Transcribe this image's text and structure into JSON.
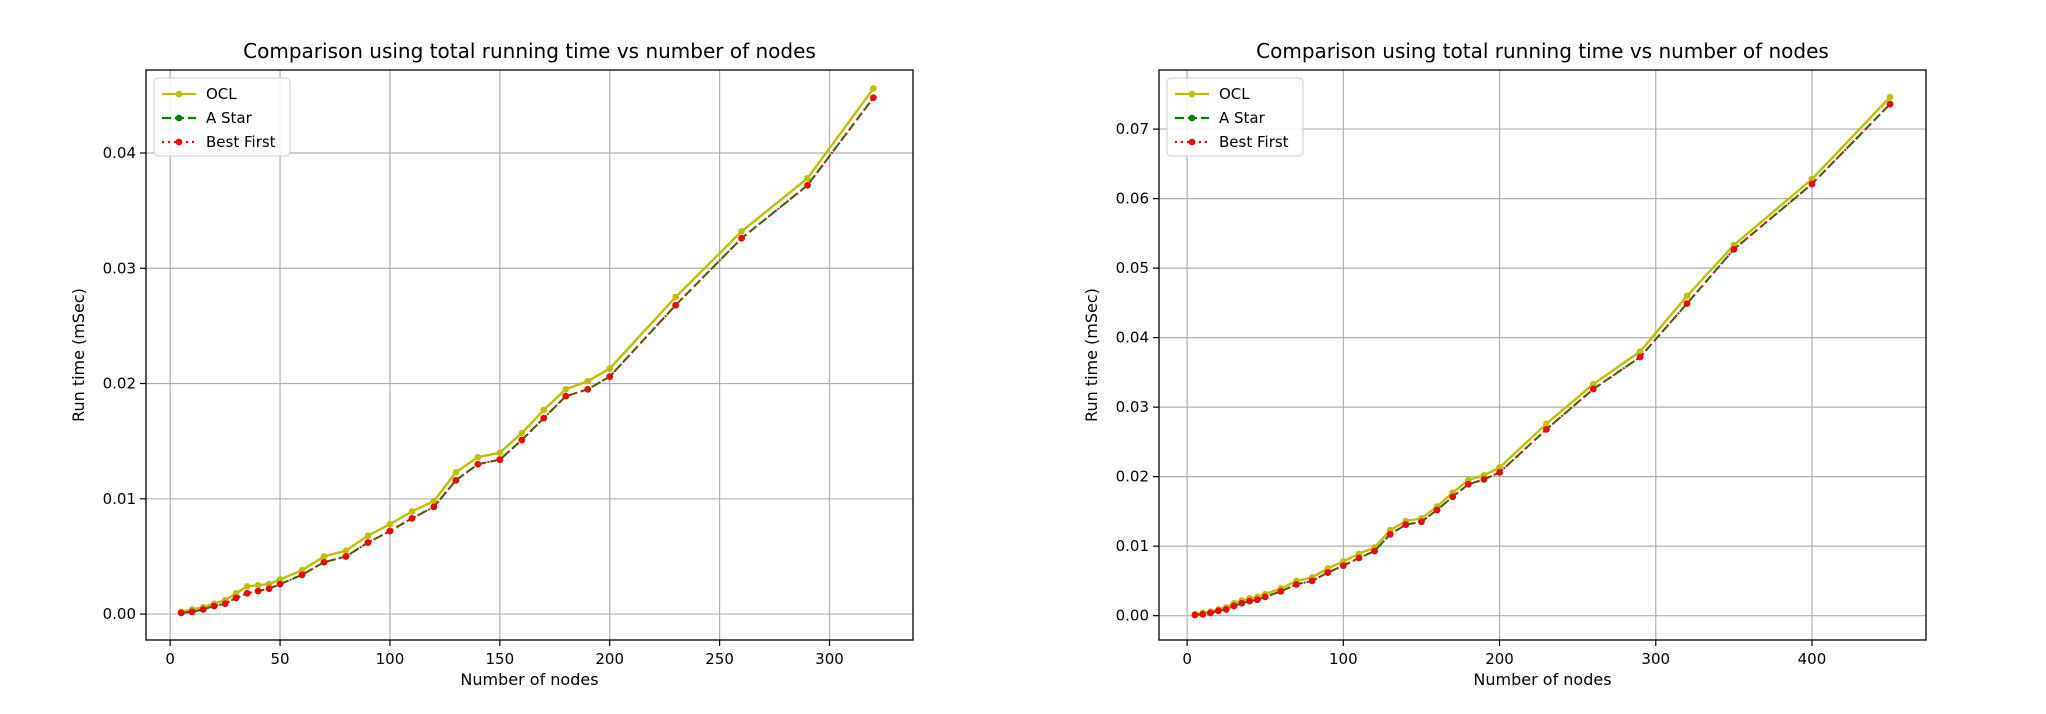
{
  "chart_data": [
    {
      "type": "line",
      "title": "Comparison using total running time vs number of nodes",
      "xlabel": "Number of nodes",
      "ylabel": "Run time (mSec)",
      "xlim": [
        -11,
        338
      ],
      "ylim": [
        -0.00225,
        0.0472
      ],
      "xticks": [
        0,
        50,
        100,
        150,
        200,
        250,
        300
      ],
      "xtick_labels": [
        "0",
        "50",
        "100",
        "150",
        "200",
        "250",
        "300"
      ],
      "yticks": [
        0.0,
        0.01,
        0.02,
        0.03,
        0.04
      ],
      "ytick_labels": [
        "0.00",
        "0.01",
        "0.02",
        "0.03",
        "0.04"
      ],
      "grid": true,
      "legend_position": "top-left",
      "x": [
        5,
        10,
        15,
        20,
        25,
        30,
        35,
        40,
        45,
        50,
        60,
        70,
        80,
        90,
        100,
        110,
        120,
        130,
        140,
        150,
        160,
        170,
        180,
        190,
        200,
        230,
        260,
        290,
        320
      ],
      "series": [
        {
          "name": "OCL",
          "color": "#bfbf00",
          "style": "solid",
          "values": [
            0.0002,
            0.0004,
            0.0006,
            0.0009,
            0.0012,
            0.0018,
            0.0024,
            0.0025,
            0.0026,
            0.003,
            0.0038,
            0.005,
            0.0055,
            0.0068,
            0.0078,
            0.0089,
            0.0098,
            0.0123,
            0.0136,
            0.014,
            0.0157,
            0.0177,
            0.0195,
            0.0202,
            0.0213,
            0.0275,
            0.0332,
            0.0378,
            0.0456
          ]
        },
        {
          "name": "A Star",
          "color": "#008000",
          "style": "dashed",
          "values": [
            0.0001,
            0.0002,
            0.0004,
            0.0007,
            0.0009,
            0.0014,
            0.0018,
            0.002,
            0.0022,
            0.0026,
            0.0034,
            0.0045,
            0.005,
            0.0062,
            0.0072,
            0.0083,
            0.0093,
            0.0116,
            0.013,
            0.0134,
            0.0151,
            0.017,
            0.0189,
            0.0195,
            0.0206,
            0.0268,
            0.0326,
            0.0372,
            0.0448
          ]
        },
        {
          "name": "Best First",
          "color": "#ff0000",
          "style": "dotted",
          "values": [
            0.0001,
            0.0002,
            0.0004,
            0.0007,
            0.0009,
            0.0014,
            0.0018,
            0.002,
            0.0022,
            0.0026,
            0.0034,
            0.0045,
            0.005,
            0.0062,
            0.0072,
            0.0083,
            0.0093,
            0.0116,
            0.013,
            0.0134,
            0.0151,
            0.017,
            0.0189,
            0.0195,
            0.0206,
            0.0268,
            0.0326,
            0.0372,
            0.0448
          ]
        }
      ]
    },
    {
      "type": "line",
      "title": "Comparison using total running time vs number of nodes",
      "xlabel": "Number of nodes",
      "ylabel": "Run time (mSec)",
      "xlim": [
        -18,
        473
      ],
      "ylim": [
        -0.0035,
        0.0785
      ],
      "xticks": [
        0,
        100,
        200,
        300,
        400
      ],
      "xtick_labels": [
        "0",
        "100",
        "200",
        "300",
        "400"
      ],
      "yticks": [
        0.0,
        0.01,
        0.02,
        0.03,
        0.04,
        0.05,
        0.06,
        0.07
      ],
      "ytick_labels": [
        "0.00",
        "0.01",
        "0.02",
        "0.03",
        "0.04",
        "0.05",
        "0.06",
        "0.07"
      ],
      "grid": true,
      "legend_position": "top-left",
      "x": [
        5,
        10,
        15,
        20,
        25,
        30,
        35,
        40,
        45,
        50,
        60,
        70,
        80,
        90,
        100,
        110,
        120,
        130,
        140,
        150,
        160,
        170,
        180,
        190,
        200,
        230,
        260,
        290,
        320,
        350,
        400,
        450
      ],
      "series": [
        {
          "name": "OCL",
          "color": "#bfbf00",
          "style": "solid",
          "values": [
            0.0002,
            0.0004,
            0.0006,
            0.0009,
            0.0012,
            0.0018,
            0.0022,
            0.0025,
            0.0027,
            0.0031,
            0.0039,
            0.005,
            0.0055,
            0.0068,
            0.0078,
            0.0089,
            0.0098,
            0.0123,
            0.0136,
            0.014,
            0.0157,
            0.0177,
            0.0195,
            0.0202,
            0.0213,
            0.0276,
            0.0333,
            0.038,
            0.046,
            0.0533,
            0.0628,
            0.0746
          ]
        },
        {
          "name": "A Star",
          "color": "#008000",
          "style": "dashed",
          "values": [
            0.0001,
            0.0002,
            0.0004,
            0.0007,
            0.0009,
            0.0014,
            0.0018,
            0.0021,
            0.0023,
            0.0027,
            0.0035,
            0.0045,
            0.005,
            0.0062,
            0.0072,
            0.0083,
            0.0093,
            0.0117,
            0.0131,
            0.0135,
            0.0152,
            0.0171,
            0.0189,
            0.0196,
            0.0206,
            0.0268,
            0.0326,
            0.0372,
            0.0449,
            0.0527,
            0.0621,
            0.0736
          ]
        },
        {
          "name": "Best First",
          "color": "#ff0000",
          "style": "dotted",
          "values": [
            0.0001,
            0.0002,
            0.0004,
            0.0007,
            0.0009,
            0.0014,
            0.0018,
            0.0021,
            0.0023,
            0.0027,
            0.0035,
            0.0045,
            0.005,
            0.0062,
            0.0072,
            0.0083,
            0.0093,
            0.0117,
            0.0131,
            0.0135,
            0.0152,
            0.0171,
            0.0189,
            0.0196,
            0.0206,
            0.0268,
            0.0326,
            0.0372,
            0.0449,
            0.0527,
            0.0621,
            0.0736
          ]
        }
      ]
    }
  ]
}
